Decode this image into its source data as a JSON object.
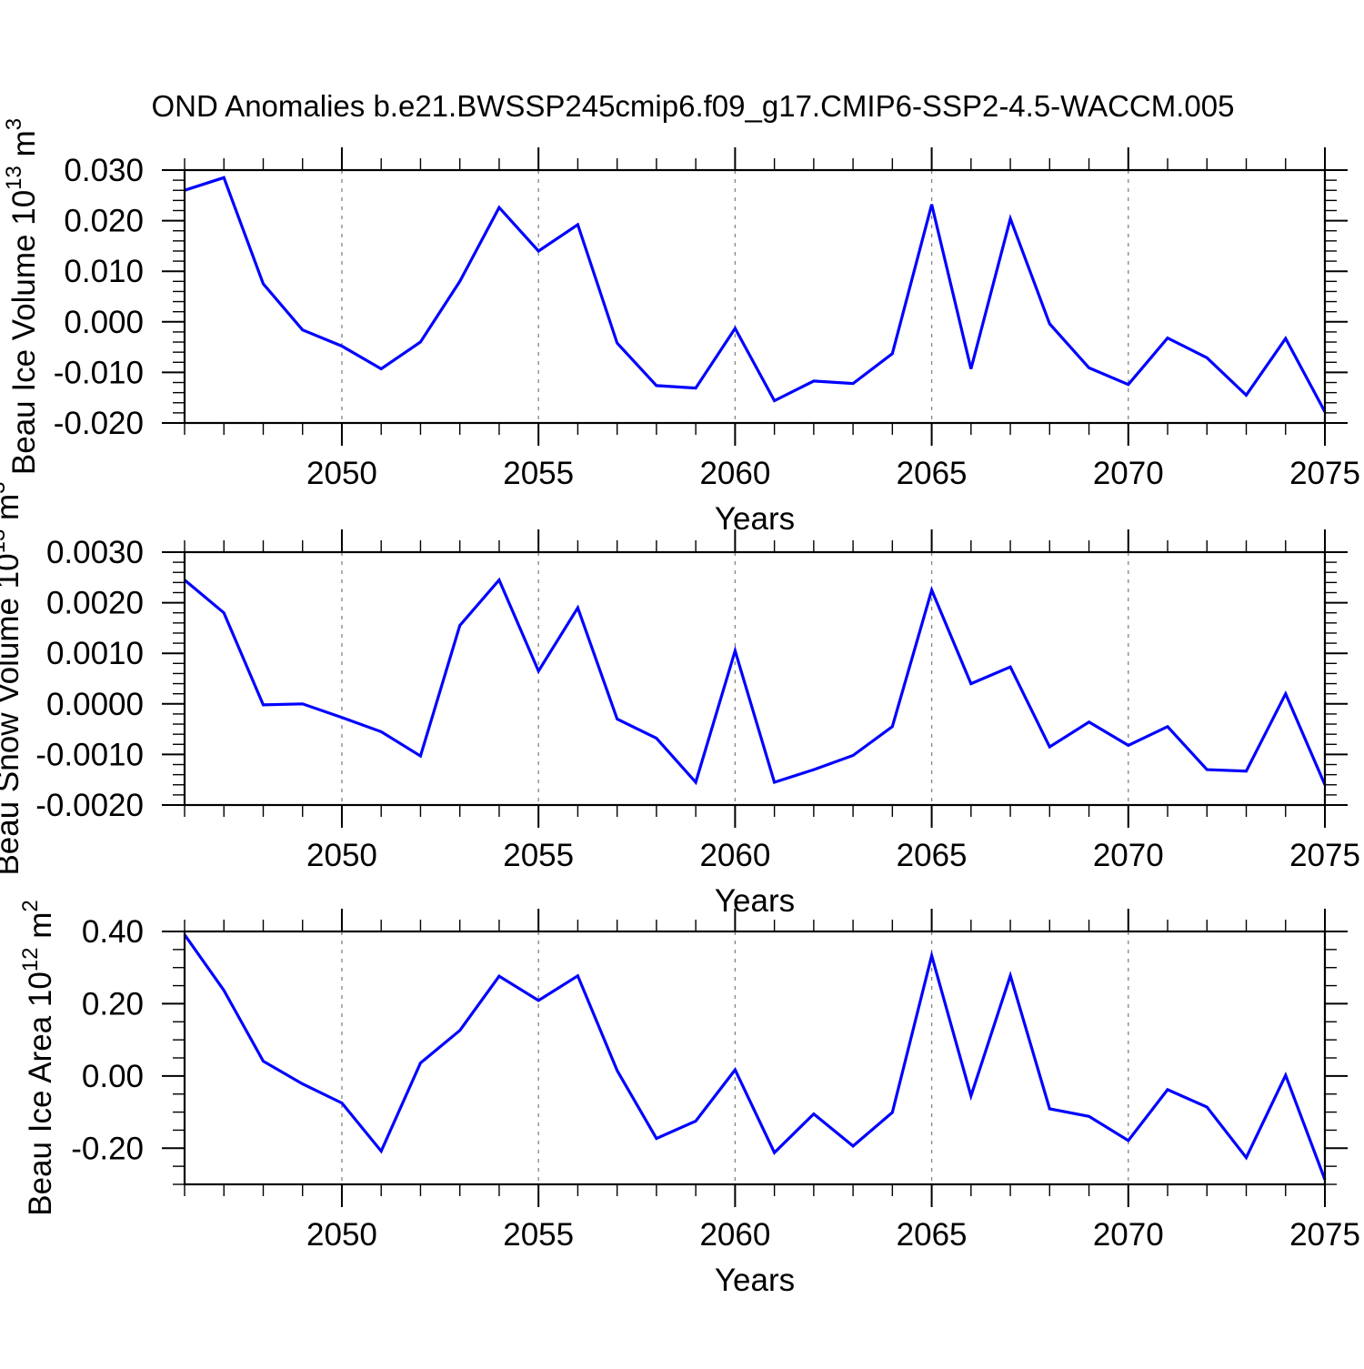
{
  "title": "OND Anomalies b.e21.BWSSP245cmip6.f09_g17.CMIP6-SSP2-4.5-WACCM.005",
  "colors": {
    "line": "#0000ff",
    "grid": "#848484",
    "axis": "#000000",
    "text": "#000000",
    "background": "#ffffff"
  },
  "x_axis": {
    "label": "Years",
    "range": [
      2046,
      2075
    ],
    "major_ticks": [
      {
        "year": 2050,
        "label": "2050"
      },
      {
        "year": 2055,
        "label": "2055"
      },
      {
        "year": 2060,
        "label": "2060"
      },
      {
        "year": 2065,
        "label": "2065"
      },
      {
        "year": 2070,
        "label": "2070"
      },
      {
        "year": 2075,
        "label": "2075"
      }
    ],
    "minor_tick_every": 1,
    "gridline_years": [
      2050,
      2055,
      2060,
      2065,
      2070
    ],
    "grid_style": "dashed"
  },
  "chart_data": [
    {
      "type": "line",
      "panel_id": "beau-ice-volume",
      "ylabel_plain": "Beau Ice Volume 10^13 m^3",
      "ylabel_segments": [
        {
          "t": "Beau Ice Volume 10"
        },
        {
          "t": "13",
          "sup": true
        },
        {
          "t": " m"
        },
        {
          "t": "3",
          "sup": true
        }
      ],
      "ylim": [
        -0.02,
        0.03
      ],
      "yticks": [
        {
          "v": 0.03,
          "label": "0.030"
        },
        {
          "v": 0.02,
          "label": "0.020"
        },
        {
          "v": 0.01,
          "label": "0.010"
        },
        {
          "v": 0.0,
          "label": "0.000"
        },
        {
          "v": -0.01,
          "label": "-0.010"
        },
        {
          "v": -0.02,
          "label": "-0.020"
        }
      ],
      "y_minor_step": 0.002,
      "x_start": 2046,
      "values": [
        0.026,
        0.0285,
        0.0075,
        -0.0016,
        -0.0048,
        -0.0093,
        -0.004,
        0.008,
        0.0226,
        0.014,
        0.0192,
        -0.0042,
        -0.0126,
        -0.0131,
        -0.0013,
        -0.0156,
        -0.0117,
        -0.0122,
        -0.0063,
        0.0232,
        -0.0093,
        0.0204,
        -0.0004,
        -0.0091,
        -0.0124,
        -0.0032,
        -0.0071,
        -0.0145,
        -0.0033,
        -0.0178
      ]
    },
    {
      "type": "line",
      "panel_id": "beau-snow-volume",
      "ylabel_plain": "Beau Snow Volume 10^13 m^3",
      "ylabel_segments": [
        {
          "t": "Beau Snow Volume 10"
        },
        {
          "t": "13",
          "sup": true
        },
        {
          "t": " m"
        },
        {
          "t": "3",
          "sup": true
        }
      ],
      "ylim": [
        -0.002,
        0.003
      ],
      "yticks": [
        {
          "v": 0.003,
          "label": "0.0030"
        },
        {
          "v": 0.002,
          "label": "0.0020"
        },
        {
          "v": 0.001,
          "label": "0.0010"
        },
        {
          "v": 0.0,
          "label": "0.0000"
        },
        {
          "v": -0.001,
          "label": "-0.0010"
        },
        {
          "v": -0.002,
          "label": "-0.0020"
        }
      ],
      "y_minor_step": 0.0002,
      "x_start": 2046,
      "values": [
        0.00245,
        0.0018,
        -2e-05,
        0.0,
        -0.00027,
        -0.00055,
        -0.00103,
        0.00155,
        0.00245,
        0.00065,
        0.0019,
        -0.0003,
        -0.00068,
        -0.00155,
        0.00105,
        -0.00155,
        -0.0013,
        -0.00102,
        -0.00045,
        0.00225,
        0.0004,
        0.00073,
        -0.00085,
        -0.00036,
        -0.00082,
        -0.00045,
        -0.0013,
        -0.00133,
        0.0002,
        -0.0016
      ]
    },
    {
      "type": "line",
      "panel_id": "beau-ice-area",
      "ylabel_plain": "Beau Ice Area 10^12 m^2",
      "ylabel_segments": [
        {
          "t": "Beau Ice Area 10"
        },
        {
          "t": "12",
          "sup": true
        },
        {
          "t": " m"
        },
        {
          "t": "2",
          "sup": true
        }
      ],
      "ylim": [
        -0.3,
        0.4
      ],
      "yticks": [
        {
          "v": 0.4,
          "label": "0.40"
        },
        {
          "v": 0.2,
          "label": "0.20"
        },
        {
          "v": 0.0,
          "label": "0.00"
        },
        {
          "v": -0.2,
          "label": "-0.20"
        }
      ],
      "y_minor_step": 0.05,
      "x_start": 2046,
      "values": [
        0.391,
        0.237,
        0.041,
        -0.022,
        -0.075,
        -0.208,
        0.036,
        0.126,
        0.276,
        0.209,
        0.277,
        0.015,
        -0.173,
        -0.125,
        0.017,
        -0.212,
        -0.105,
        -0.194,
        -0.101,
        0.333,
        -0.055,
        0.278,
        -0.091,
        -0.112,
        -0.179,
        -0.038,
        -0.086,
        -0.226,
        0.002,
        -0.287
      ]
    }
  ]
}
